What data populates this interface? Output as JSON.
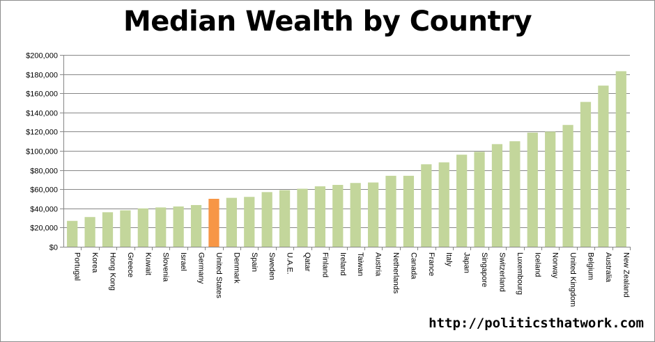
{
  "chart_data": {
    "type": "bar",
    "title": "Median Wealth by Country",
    "xlabel": "",
    "ylabel": "",
    "ylim": [
      0,
      200000
    ],
    "y_ticks": [
      0,
      20000,
      40000,
      60000,
      80000,
      100000,
      120000,
      140000,
      160000,
      180000,
      200000
    ],
    "y_tick_labels": [
      "$0",
      "$20,000",
      "$40,000",
      "$60,000",
      "$80,000",
      "$100,000",
      "$120,000",
      "$140,000",
      "$160,000",
      "$180,000",
      "$200,000"
    ],
    "grid": true,
    "legend": "none",
    "categories": [
      "Portugal",
      "Korea",
      "Hong Kong",
      "Greece",
      "Kuwait",
      "Slovenia",
      "Israel",
      "Germany",
      "United States",
      "Denmark",
      "Spain",
      "Sweden",
      "U.A.E.",
      "Qatar",
      "Finland",
      "Ireland",
      "Taiwan",
      "Austria",
      "Netherlands",
      "Canada",
      "France",
      "Italy",
      "Japan",
      "Singapore",
      "Switzerland",
      "Luxembourg",
      "Iceland",
      "Norway",
      "United Kingdom",
      "Belgium",
      "Australia",
      "New Zealand"
    ],
    "values": [
      27000,
      31000,
      36000,
      38000,
      40000,
      41000,
      42000,
      43500,
      50000,
      51000,
      52000,
      57000,
      59000,
      60500,
      63000,
      64500,
      66500,
      67000,
      74000,
      74000,
      86000,
      88000,
      96000,
      99000,
      107000,
      110000,
      119000,
      120000,
      127000,
      151000,
      168000,
      183000
    ],
    "highlight_category": "United States",
    "colors": {
      "bar": "#c3d69b",
      "highlight": "#f79646",
      "grid": "#868686",
      "axis": "#868686"
    }
  },
  "source_url": "http://politicsthatwork.com"
}
